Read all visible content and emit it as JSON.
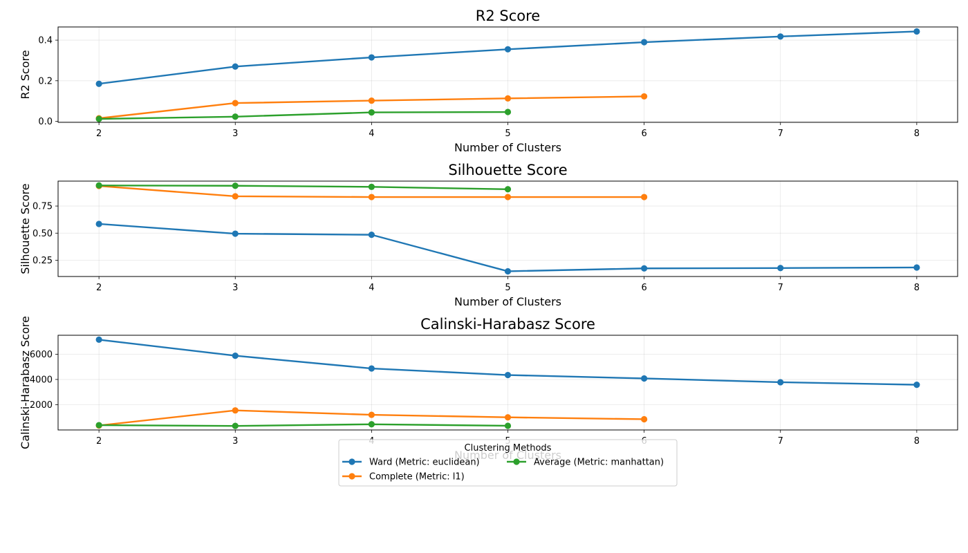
{
  "chart_data": [
    {
      "type": "line",
      "title": "R2 Score",
      "xlabel": "Number of Clusters",
      "ylabel": "R2 Score",
      "xlim": [
        1.7,
        8.3
      ],
      "ylim": [
        -0.005,
        0.465
      ],
      "xticks": [
        2,
        3,
        4,
        5,
        6,
        7,
        8
      ],
      "xtick_labels": [
        "2",
        "3",
        "4",
        "5",
        "6",
        "7",
        "8"
      ],
      "yticks": [
        0.0,
        0.2,
        0.4
      ],
      "ytick_labels": [
        "0.0",
        "0.2",
        "0.4"
      ],
      "grid": true,
      "series": [
        {
          "name": "Ward (Metric: euclidean)",
          "color": "#1f77b4",
          "x": [
            2,
            3,
            4,
            5,
            6,
            7,
            8
          ],
          "y": [
            0.185,
            0.27,
            0.315,
            0.355,
            0.39,
            0.418,
            0.443
          ]
        },
        {
          "name": "Complete (Metric: l1)",
          "color": "#ff7f0e",
          "x": [
            2,
            3,
            4,
            5,
            6
          ],
          "y": [
            0.015,
            0.09,
            0.102,
            0.113,
            0.123
          ]
        },
        {
          "name": "Average (Metric: manhattan)",
          "color": "#2ca02c",
          "x": [
            2,
            3,
            4,
            5
          ],
          "y": [
            0.012,
            0.023,
            0.044,
            0.046
          ]
        }
      ]
    },
    {
      "type": "line",
      "title": "Silhouette Score",
      "xlabel": "Number of Clusters",
      "ylabel": "Silhouette Score",
      "xlim": [
        1.7,
        8.3
      ],
      "ylim": [
        0.1,
        0.98
      ],
      "xticks": [
        2,
        3,
        4,
        5,
        6,
        7,
        8
      ],
      "xtick_labels": [
        "2",
        "3",
        "4",
        "5",
        "6",
        "7",
        "8"
      ],
      "yticks": [
        0.25,
        0.5,
        0.75
      ],
      "ytick_labels": [
        "0.25",
        "0.50",
        "0.75"
      ],
      "grid": true,
      "series": [
        {
          "name": "Ward (Metric: euclidean)",
          "color": "#1f77b4",
          "x": [
            2,
            3,
            4,
            5,
            6,
            7,
            8
          ],
          "y": [
            0.585,
            0.495,
            0.485,
            0.148,
            0.175,
            0.178,
            0.183
          ]
        },
        {
          "name": "Complete (Metric: l1)",
          "color": "#ff7f0e",
          "x": [
            2,
            3,
            4,
            5,
            6
          ],
          "y": [
            0.935,
            0.84,
            0.833,
            0.833,
            0.833
          ]
        },
        {
          "name": "Average (Metric: manhattan)",
          "color": "#2ca02c",
          "x": [
            2,
            3,
            4,
            5
          ],
          "y": [
            0.94,
            0.937,
            0.927,
            0.905
          ]
        }
      ]
    },
    {
      "type": "line",
      "title": "Calinski-Harabasz Score",
      "xlabel": "Number of Clusters",
      "ylabel": "Calinski-Harabasz Score",
      "xlim": [
        1.7,
        8.3
      ],
      "ylim": [
        0,
        7500
      ],
      "xticks": [
        2,
        3,
        4,
        5,
        6,
        7,
        8
      ],
      "xtick_labels": [
        "2",
        "3",
        "4",
        "5",
        "6",
        "7",
        "8"
      ],
      "yticks": [
        2000,
        4000,
        6000
      ],
      "ytick_labels": [
        "2000",
        "4000",
        "6000"
      ],
      "grid": true,
      "series": [
        {
          "name": "Ward (Metric: euclidean)",
          "color": "#1f77b4",
          "x": [
            2,
            3,
            4,
            5,
            6,
            7,
            8
          ],
          "y": [
            7150,
            5880,
            4870,
            4350,
            4080,
            3780,
            3580
          ]
        },
        {
          "name": "Complete (Metric: l1)",
          "color": "#ff7f0e",
          "x": [
            2,
            3,
            4,
            5,
            6
          ],
          "y": [
            350,
            1550,
            1200,
            1000,
            850
          ]
        },
        {
          "name": "Average (Metric: manhattan)",
          "color": "#2ca02c",
          "x": [
            2,
            3,
            4,
            5
          ],
          "y": [
            380,
            320,
            450,
            330
          ]
        }
      ]
    }
  ],
  "legend": {
    "title": "Clustering Methods",
    "placement": "bottom-center",
    "entries": [
      {
        "label": "Ward (Metric: euclidean)",
        "color": "#1f77b4"
      },
      {
        "label": "Complete (Metric: l1)",
        "color": "#ff7f0e"
      },
      {
        "label": "Average (Metric: manhattan)",
        "color": "#2ca02c"
      }
    ]
  }
}
